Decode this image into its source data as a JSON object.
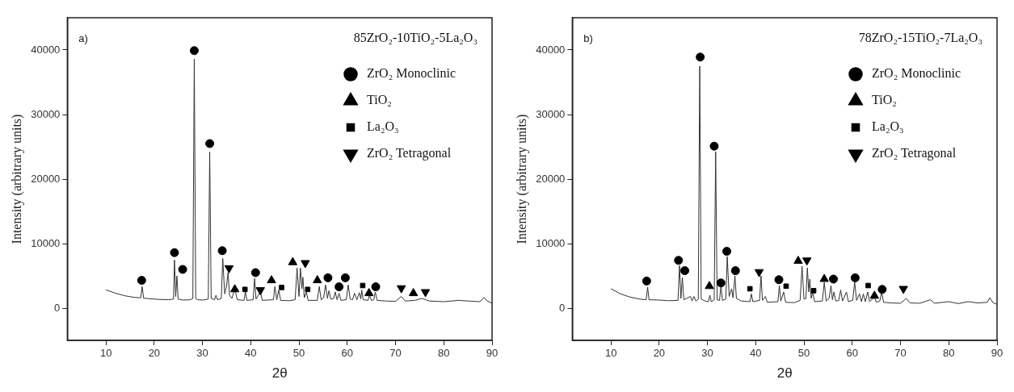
{
  "chart_data": [
    {
      "type": "line",
      "annotations": [
        "a)",
        "85ZrO₂-10TiO₂-5La₂O₃"
      ],
      "xlabel": "2θ",
      "ylabel": "Intensity (arbitrary units)",
      "xlim": [
        2,
        90
      ],
      "ylim": [
        -5000,
        45000
      ],
      "xticks": [
        10,
        20,
        30,
        40,
        50,
        60,
        70,
        80,
        90
      ],
      "yticks": [
        0,
        10000,
        20000,
        30000,
        40000
      ],
      "grid": false,
      "legend": "top right",
      "series": [
        {
          "type": "line",
          "color": "#333333",
          "marker": "none",
          "x": [
            10,
            12,
            14,
            16,
            17.2,
            17.5,
            17.8,
            19,
            21,
            23,
            24.0,
            24.2,
            24.45,
            24.7,
            24.95,
            26,
            27.5,
            28.0,
            28.3,
            28.6,
            29,
            30,
            31.2,
            31.5,
            31.8,
            32.5,
            32.8,
            33.1,
            33.9,
            34.2,
            34.6,
            35.0,
            35.3,
            35.6,
            36.1,
            36.7,
            37.2,
            38.6,
            38.9,
            39.2,
            40.5,
            40.8,
            41.1,
            42.0,
            42.4,
            44.7,
            45.0,
            45.4,
            45.8,
            46.2,
            48,
            49.2,
            49.6,
            50.0,
            50.3,
            50.6,
            50.8,
            51.1,
            51.5,
            51.9,
            53.8,
            54.2,
            54.6,
            55.1,
            55.5,
            55.9,
            56.2,
            56.6,
            57.2,
            57.5,
            57.9,
            58.3,
            58.7,
            59.8,
            60.2,
            60.6,
            61.1,
            61.5,
            62.0,
            62.5,
            62.8,
            63.0,
            63.3,
            64.3,
            64.6,
            65.0,
            65.5,
            65.8,
            66.2,
            68,
            70,
            71.2,
            72,
            74,
            75.5,
            77,
            80,
            83,
            85,
            87.5,
            88.3,
            89,
            90
          ],
          "values": [
            2830,
            2300,
            1900,
            1650,
            1600,
            3350,
            1550,
            1450,
            1350,
            1300,
            1400,
            7470,
            1800,
            5000,
            1400,
            1250,
            1300,
            1500,
            38600,
            1500,
            1300,
            1250,
            1400,
            24200,
            1500,
            1300,
            2000,
            1300,
            1500,
            7700,
            2200,
            3500,
            5500,
            2000,
            1500,
            3000,
            1300,
            1200,
            2600,
            1200,
            1300,
            4600,
            1400,
            2500,
            1200,
            1300,
            3350,
            1300,
            2800,
            1200,
            1150,
            1300,
            6200,
            1800,
            6200,
            3000,
            4800,
            1600,
            2500,
            1200,
            1200,
            3350,
            1300,
            1600,
            3600,
            1500,
            2700,
            1400,
            1500,
            2500,
            1300,
            2300,
            1200,
            1300,
            3600,
            1400,
            1300,
            2300,
            1300,
            2400,
            1400,
            2800,
            1300,
            1200,
            2000,
            1200,
            1300,
            2500,
            1200,
            1100,
            1050,
            1800,
            1100,
            1200,
            1500,
            1100,
            1000,
            1200,
            1100,
            1000,
            1650,
            1100,
            770
          ]
        },
        {
          "type": "scatter",
          "name": "ZrO₂ Monoclinic",
          "color": "#000000",
          "marker": "circle",
          "x": [
            17.4,
            24.2,
            25.9,
            28.3,
            31.5,
            34.1,
            41.0,
            56.0,
            58.3,
            59.6,
            65.9
          ],
          "values": [
            4300,
            8600,
            6000,
            39900,
            25500,
            8900,
            5500,
            4700,
            3300,
            4700,
            3300
          ]
        },
        {
          "type": "scatter",
          "name": "TiO₂",
          "color": "#000000",
          "marker": "triangle",
          "x": [
            36.7,
            44.3,
            48.7,
            53.8,
            64.5,
            73.7
          ],
          "values": [
            2900,
            4300,
            7100,
            4300,
            2300,
            2300
          ]
        },
        {
          "type": "scatter",
          "name": "La₂O₃",
          "color": "#000000",
          "marker": "square",
          "x": [
            38.8,
            46.4,
            51.8,
            63.2
          ],
          "values": [
            2900,
            3200,
            2900,
            3500
          ]
        },
        {
          "type": "scatter",
          "name": "ZrO₂ Tetragonal",
          "color": "#000000",
          "marker": "triangle-down",
          "x": [
            35.5,
            42.0,
            51.3,
            71.2,
            76.2
          ],
          "values": [
            6200,
            2800,
            7000,
            3100,
            2500
          ]
        }
      ]
    },
    {
      "type": "line",
      "annotations": [
        "b)",
        "78ZrO₂-15TiO₂-7La₂O₃"
      ],
      "xlabel": "2θ",
      "ylabel": "Intensity (arbitrary units)",
      "xlim": [
        2,
        90
      ],
      "ylim": [
        -5000,
        45000
      ],
      "xticks": [
        10,
        20,
        30,
        40,
        50,
        60,
        70,
        80,
        90
      ],
      "yticks": [
        0,
        10000,
        20000,
        30000,
        40000
      ],
      "grid": false,
      "legend": "top right",
      "series": [
        {
          "type": "line",
          "color": "#333333",
          "marker": "none",
          "x": [
            10,
            12,
            14,
            16,
            17.3,
            17.6,
            17.9,
            20,
            22,
            23.9,
            24.2,
            24.5,
            24.8,
            25.1,
            26.5,
            26.8,
            27.2,
            27.6,
            28.1,
            28.4,
            28.7,
            29.5,
            30.2,
            30.5,
            30.8,
            31.4,
            31.7,
            32.0,
            32.5,
            32.8,
            33.1,
            33.8,
            34.1,
            34.5,
            35.0,
            35.3,
            35.7,
            36.0,
            37,
            38.8,
            39.1,
            39.4,
            40.8,
            41.1,
            41.4,
            42.0,
            42.4,
            44.6,
            44.9,
            45.2,
            45.8,
            46.2,
            48,
            49.2,
            49.6,
            50.0,
            50.4,
            50.7,
            51.0,
            51.2,
            51.5,
            51.8,
            52.2,
            53.8,
            54.2,
            54.6,
            55.2,
            55.6,
            55.9,
            56.2,
            56.6,
            57.2,
            57.6,
            58.0,
            58.8,
            59.2,
            60.1,
            60.5,
            60.9,
            61.5,
            61.9,
            62.3,
            62.7,
            63.2,
            63.6,
            64.6,
            65.0,
            65.7,
            66.1,
            66.5,
            68,
            70,
            71.2,
            72,
            74,
            76.2,
            77,
            80,
            82,
            84,
            86,
            88,
            88.5,
            89.2,
            90
          ],
          "values": [
            3000,
            2200,
            1700,
            1400,
            1300,
            3250,
            1300,
            1250,
            1150,
            1200,
            6600,
            1500,
            4750,
            1300,
            1800,
            1100,
            1800,
            1100,
            1400,
            37500,
            1400,
            1100,
            1000,
            2000,
            1000,
            1300,
            24250,
            1300,
            1200,
            3500,
            1200,
            1400,
            8000,
            1800,
            3000,
            1600,
            5000,
            1500,
            1100,
            1000,
            2200,
            1000,
            1200,
            5000,
            1200,
            1800,
            900,
            1000,
            3500,
            1100,
            2500,
            900,
            850,
            1200,
            6500,
            1400,
            1500,
            6250,
            2500,
            4500,
            1500,
            2500,
            1000,
            1100,
            4000,
            1100,
            1500,
            3500,
            1300,
            2500,
            1100,
            1200,
            2800,
            1100,
            2500,
            1000,
            1200,
            4000,
            1200,
            2200,
            1000,
            2200,
            1000,
            2500,
            1000,
            1700,
            900,
            1100,
            2500,
            900,
            800,
            750,
            1500,
            800,
            750,
            1300,
            750,
            1000,
            700,
            1000,
            800,
            900,
            1600,
            800,
            600
          ]
        },
        {
          "type": "scatter",
          "name": "ZrO₂ Monoclinic",
          "color": "#000000",
          "marker": "circle",
          "x": [
            17.4,
            24.0,
            25.3,
            28.5,
            31.4,
            32.8,
            34.0,
            35.8,
            44.8,
            56.1,
            60.6,
            66.2
          ],
          "values": [
            4200,
            7400,
            5800,
            38900,
            25100,
            3900,
            8800,
            5800,
            4400,
            4500,
            4700,
            2900
          ]
        },
        {
          "type": "scatter",
          "name": "TiO₂",
          "color": "#000000",
          "marker": "triangle",
          "x": [
            30.4,
            48.8,
            54.2,
            64.6
          ],
          "values": [
            3400,
            7300,
            4500,
            1900
          ]
        },
        {
          "type": "scatter",
          "name": "La₂O₃",
          "color": "#000000",
          "marker": "square",
          "x": [
            38.8,
            46.3,
            52.0,
            63.3
          ],
          "values": [
            3000,
            3400,
            2700,
            3500
          ]
        },
        {
          "type": "scatter",
          "name": "ZrO₂ Tetragonal",
          "color": "#000000",
          "marker": "triangle-down",
          "x": [
            40.7,
            50.6,
            70.6
          ],
          "values": [
            5600,
            7400,
            3000
          ]
        }
      ]
    }
  ]
}
